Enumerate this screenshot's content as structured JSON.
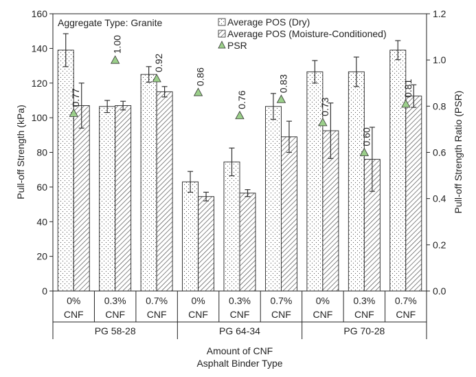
{
  "chart_data": {
    "type": "bar",
    "annotation": "Aggregate Type: Granite",
    "ylabel": "Pull-off  Strength (kPa)",
    "y2label": "Pull-off  Strength Ratio (PSR)",
    "xlabel_line1": "Amount of CNF",
    "xlabel_line2": "Asphalt Binder Type",
    "ylim": [
      0,
      160
    ],
    "y2lim": [
      0,
      1.2
    ],
    "yticks": [
      "0",
      "20",
      "40",
      "60",
      "80",
      "100",
      "120",
      "140",
      "160"
    ],
    "y2ticks": [
      "0.0",
      "0.2",
      "0.4",
      "0.6",
      "0.8",
      "1.0",
      "1.2"
    ],
    "grid": false,
    "legend_position": "top-right",
    "legend": [
      {
        "name": "Average POS (Dry)",
        "marker": "square"
      },
      {
        "name": "Average POS (Moisture-Conditioned)",
        "marker": "square"
      },
      {
        "name": "PSR",
        "marker": "triangle"
      }
    ],
    "categories": [
      {
        "line1": "0%",
        "line2": "CNF"
      },
      {
        "line1": "0.3%",
        "line2": "CNF"
      },
      {
        "line1": "0.7%",
        "line2": "CNF"
      },
      {
        "line1": "0%",
        "line2": "CNF"
      },
      {
        "line1": "0.3%",
        "line2": "CNF"
      },
      {
        "line1": "0.7%",
        "line2": "CNF"
      },
      {
        "line1": "0%",
        "line2": "CNF"
      },
      {
        "line1": "0.3%",
        "line2": "CNF"
      },
      {
        "line1": "0.7%",
        "line2": "CNF"
      }
    ],
    "groups": [
      "PG 58-28",
      "PG 64-34",
      "PG 70-28"
    ],
    "series": [
      {
        "name": "Average POS (Dry)",
        "values": [
          139,
          106.5,
          125,
          63,
          74.5,
          106.5,
          126.5,
          126.5,
          139
        ],
        "errors": [
          9.5,
          3.5,
          4.5,
          6,
          8,
          7.5,
          6.5,
          8.5,
          5.5
        ]
      },
      {
        "name": "Average POS (Moisture-Conditioned)",
        "values": [
          107,
          107,
          115,
          54.5,
          56.5,
          89,
          92.5,
          76,
          112.5
        ],
        "errors": [
          13,
          2.5,
          3,
          2.5,
          2,
          9,
          16,
          18.5,
          6.5
        ]
      },
      {
        "name": "PSR",
        "values": [
          0.77,
          1.0,
          0.92,
          0.86,
          0.76,
          0.83,
          0.73,
          0.6,
          0.81
        ],
        "labels": [
          "0.77",
          "1.00",
          "0.92",
          "0.86",
          "0.76",
          "0.83",
          "0.73",
          "0.60",
          "0.81"
        ]
      }
    ]
  }
}
